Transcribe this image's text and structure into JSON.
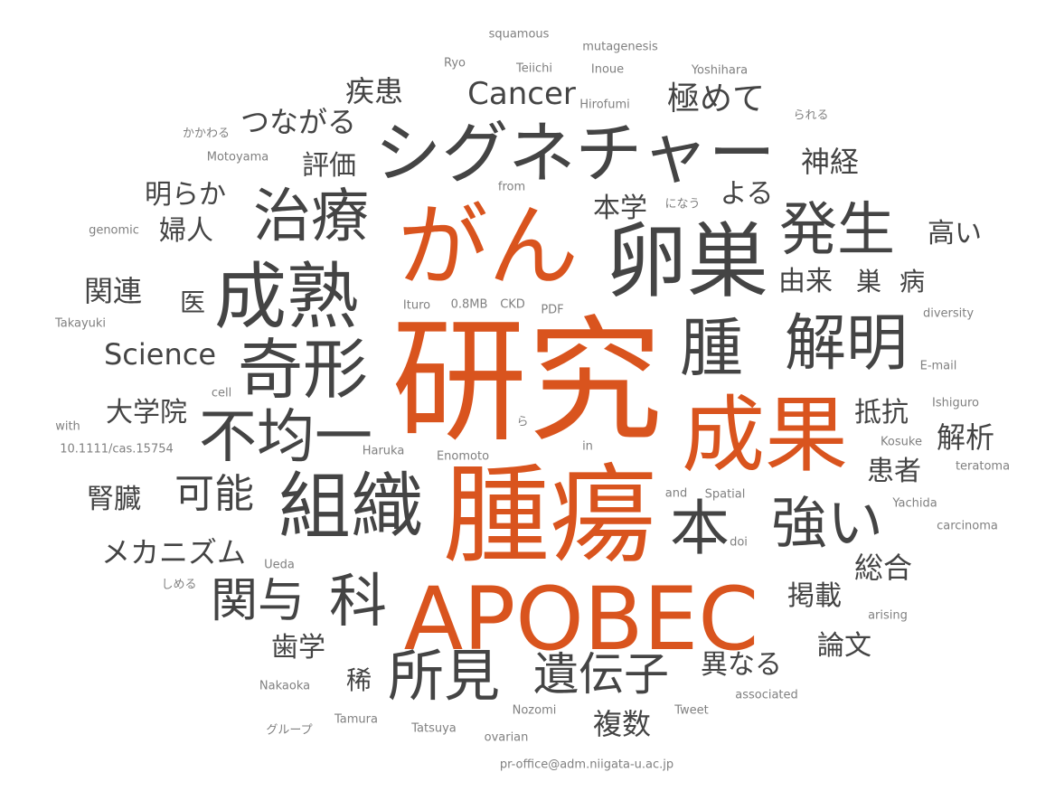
{
  "colors": {
    "accent": "#d9541e",
    "dark": "#444444",
    "medium": "#5a5a5a",
    "light": "#808080",
    "background": "#ffffff"
  },
  "words": [
    {
      "text": "研究",
      "tone": "accent"
    },
    {
      "text": "腫瘍",
      "tone": "accent"
    },
    {
      "text": "APOBEC",
      "tone": "accent"
    },
    {
      "text": "がん",
      "tone": "accent"
    },
    {
      "text": "成果",
      "tone": "accent"
    },
    {
      "text": "シグネチャー",
      "tone": "dark"
    },
    {
      "text": "卵巣",
      "tone": "dark"
    },
    {
      "text": "成熟",
      "tone": "dark"
    },
    {
      "text": "組織",
      "tone": "dark"
    },
    {
      "text": "奇形",
      "tone": "dark"
    },
    {
      "text": "治療",
      "tone": "dark"
    },
    {
      "text": "不均一",
      "tone": "dark"
    },
    {
      "text": "解明",
      "tone": "dark"
    },
    {
      "text": "腫",
      "tone": "dark"
    },
    {
      "text": "発生",
      "tone": "dark"
    },
    {
      "text": "本",
      "tone": "dark"
    },
    {
      "text": "強い",
      "tone": "dark"
    },
    {
      "text": "所見",
      "tone": "dark"
    },
    {
      "text": "科",
      "tone": "dark"
    },
    {
      "text": "遺伝子",
      "tone": "dark"
    },
    {
      "text": "関与",
      "tone": "dark"
    },
    {
      "text": "可能",
      "tone": "dark"
    },
    {
      "text": "Cancer",
      "tone": "dark"
    },
    {
      "text": "Science",
      "tone": "dark"
    },
    {
      "text": "つながる",
      "tone": "dark"
    },
    {
      "text": "極めて",
      "tone": "dark"
    },
    {
      "text": "疾患",
      "tone": "dark"
    },
    {
      "text": "評価",
      "tone": "dark"
    },
    {
      "text": "神経",
      "tone": "dark"
    },
    {
      "text": "明らか",
      "tone": "dark"
    },
    {
      "text": "婦人",
      "tone": "dark"
    },
    {
      "text": "本学",
      "tone": "dark"
    },
    {
      "text": "よる",
      "tone": "dark"
    },
    {
      "text": "高い",
      "tone": "dark"
    },
    {
      "text": "関連",
      "tone": "dark"
    },
    {
      "text": "医",
      "tone": "dark"
    },
    {
      "text": "由来",
      "tone": "dark"
    },
    {
      "text": "巣",
      "tone": "dark"
    },
    {
      "text": "病",
      "tone": "dark"
    },
    {
      "text": "大学院",
      "tone": "dark"
    },
    {
      "text": "抵抗",
      "tone": "dark"
    },
    {
      "text": "解析",
      "tone": "dark"
    },
    {
      "text": "患者",
      "tone": "dark"
    },
    {
      "text": "腎臓",
      "tone": "dark"
    },
    {
      "text": "メカニズム",
      "tone": "dark"
    },
    {
      "text": "総合",
      "tone": "dark"
    },
    {
      "text": "掲載",
      "tone": "dark"
    },
    {
      "text": "歯学",
      "tone": "dark"
    },
    {
      "text": "論文",
      "tone": "dark"
    },
    {
      "text": "稀",
      "tone": "dark"
    },
    {
      "text": "異なる",
      "tone": "dark"
    },
    {
      "text": "複数",
      "tone": "dark"
    },
    {
      "text": "squamous",
      "tone": "light"
    },
    {
      "text": "mutagenesis",
      "tone": "light"
    },
    {
      "text": "Ryo",
      "tone": "light"
    },
    {
      "text": "Teiichi",
      "tone": "light"
    },
    {
      "text": "Inoue",
      "tone": "light"
    },
    {
      "text": "Yoshihara",
      "tone": "light"
    },
    {
      "text": "Hirofumi",
      "tone": "light"
    },
    {
      "text": "られる",
      "tone": "light"
    },
    {
      "text": "かかわる",
      "tone": "light"
    },
    {
      "text": "Motoyama",
      "tone": "light"
    },
    {
      "text": "from",
      "tone": "light"
    },
    {
      "text": "になう",
      "tone": "light"
    },
    {
      "text": "genomic",
      "tone": "light"
    },
    {
      "text": "Takayuki",
      "tone": "light"
    },
    {
      "text": "Ituro",
      "tone": "light"
    },
    {
      "text": "0.8MB",
      "tone": "light"
    },
    {
      "text": "CKD",
      "tone": "light"
    },
    {
      "text": "PDF",
      "tone": "light"
    },
    {
      "text": "diversity",
      "tone": "light"
    },
    {
      "text": "E-mail",
      "tone": "light"
    },
    {
      "text": "cell",
      "tone": "light"
    },
    {
      "text": "Ishiguro",
      "tone": "light"
    },
    {
      "text": "with",
      "tone": "light"
    },
    {
      "text": "ら",
      "tone": "light"
    },
    {
      "text": "10.1111/cas.15754",
      "tone": "light"
    },
    {
      "text": "Haruka",
      "tone": "light"
    },
    {
      "text": "Enomoto",
      "tone": "light"
    },
    {
      "text": "in",
      "tone": "light"
    },
    {
      "text": "Kosuke",
      "tone": "light"
    },
    {
      "text": "teratoma",
      "tone": "light"
    },
    {
      "text": "and",
      "tone": "light"
    },
    {
      "text": "Spatial",
      "tone": "light"
    },
    {
      "text": "Yachida",
      "tone": "light"
    },
    {
      "text": "carcinoma",
      "tone": "light"
    },
    {
      "text": "doi",
      "tone": "light"
    },
    {
      "text": "Ueda",
      "tone": "light"
    },
    {
      "text": "しめる",
      "tone": "light"
    },
    {
      "text": "arising",
      "tone": "light"
    },
    {
      "text": "Nakaoka",
      "tone": "light"
    },
    {
      "text": "associated",
      "tone": "light"
    },
    {
      "text": "Nozomi",
      "tone": "light"
    },
    {
      "text": "Tweet",
      "tone": "light"
    },
    {
      "text": "グループ",
      "tone": "light"
    },
    {
      "text": "Tamura",
      "tone": "light"
    },
    {
      "text": "Tatsuya",
      "tone": "light"
    },
    {
      "text": "ovarian",
      "tone": "light"
    },
    {
      "text": "pr-office@adm.niigata-u.ac.jp",
      "tone": "light"
    }
  ]
}
